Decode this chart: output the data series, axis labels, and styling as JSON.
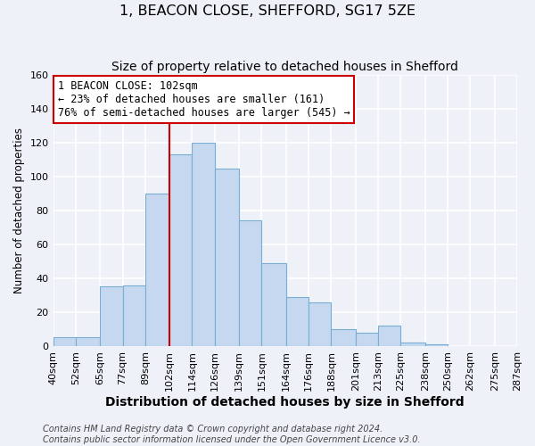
{
  "title": "1, BEACON CLOSE, SHEFFORD, SG17 5ZE",
  "subtitle": "Size of property relative to detached houses in Shefford",
  "xlabel": "Distribution of detached houses by size in Shefford",
  "ylabel": "Number of detached properties",
  "bin_edges": [
    40,
    52,
    65,
    77,
    89,
    102,
    114,
    126,
    139,
    151,
    164,
    176,
    188,
    201,
    213,
    225,
    238,
    250,
    262,
    275,
    287
  ],
  "bar_heights": [
    5,
    5,
    35,
    36,
    90,
    113,
    120,
    105,
    74,
    49,
    29,
    26,
    10,
    8,
    12,
    2,
    1,
    0,
    0,
    0
  ],
  "bar_color": "#c5d8f0",
  "bar_edge_color": "#7aadd4",
  "bar_linewidth": 0.8,
  "vline_x": 102,
  "vline_color": "#cc0000",
  "vline_linewidth": 1.5,
  "annotation_line1": "1 BEACON CLOSE: 102sqm",
  "annotation_line2": "← 23% of detached houses are smaller (161)",
  "annotation_line3": "76% of semi-detached houses are larger (545) →",
  "annotation_box_edgecolor": "#cc0000",
  "annotation_box_facecolor": "#ffffff",
  "annotation_fontsize": 8.5,
  "ylim": [
    0,
    160
  ],
  "yticks": [
    0,
    20,
    40,
    60,
    80,
    100,
    120,
    140,
    160
  ],
  "footer_line1": "Contains HM Land Registry data © Crown copyright and database right 2024.",
  "footer_line2": "Contains public sector information licensed under the Open Government Licence v3.0.",
  "background_color": "#eef2f8",
  "grid_color": "#ffffff",
  "title_fontsize": 11.5,
  "subtitle_fontsize": 10,
  "xlabel_fontsize": 10,
  "ylabel_fontsize": 8.5,
  "footer_fontsize": 7,
  "tick_fontsize": 8
}
